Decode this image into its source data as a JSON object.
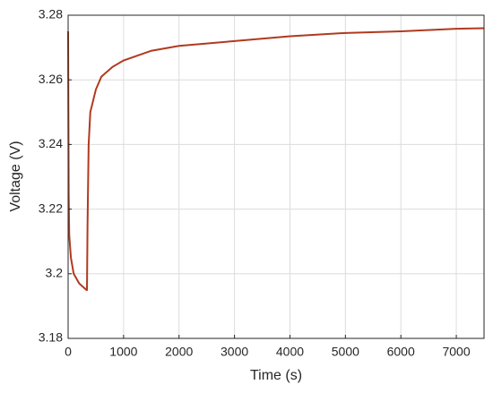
{
  "chart_data": {
    "type": "line",
    "xlabel": "Time (s)",
    "ylabel": "Voltage (V)",
    "x": [
      0,
      5,
      10,
      20,
      50,
      100,
      200,
      330,
      340,
      350,
      370,
      400,
      500,
      600,
      800,
      1000,
      1500,
      2000,
      3000,
      4000,
      5000,
      6000,
      7000,
      7500
    ],
    "series": [
      {
        "color": "#b03a1e",
        "values": [
          3.275,
          3.25,
          3.225,
          3.212,
          3.205,
          3.2,
          3.197,
          3.195,
          3.195,
          3.215,
          3.24,
          3.25,
          3.257,
          3.261,
          3.264,
          3.266,
          3.269,
          3.2705,
          3.272,
          3.2735,
          3.2745,
          3.275,
          3.2758,
          3.276
        ]
      }
    ],
    "xlim": [
      0,
      7500
    ],
    "xticks": [
      0,
      1000,
      2000,
      3000,
      4000,
      5000,
      6000,
      7000
    ],
    "ylim": [
      3.18,
      3.28
    ],
    "yticks": [
      3.18,
      3.2,
      3.22,
      3.24,
      3.26,
      3.28
    ],
    "grid": true
  }
}
